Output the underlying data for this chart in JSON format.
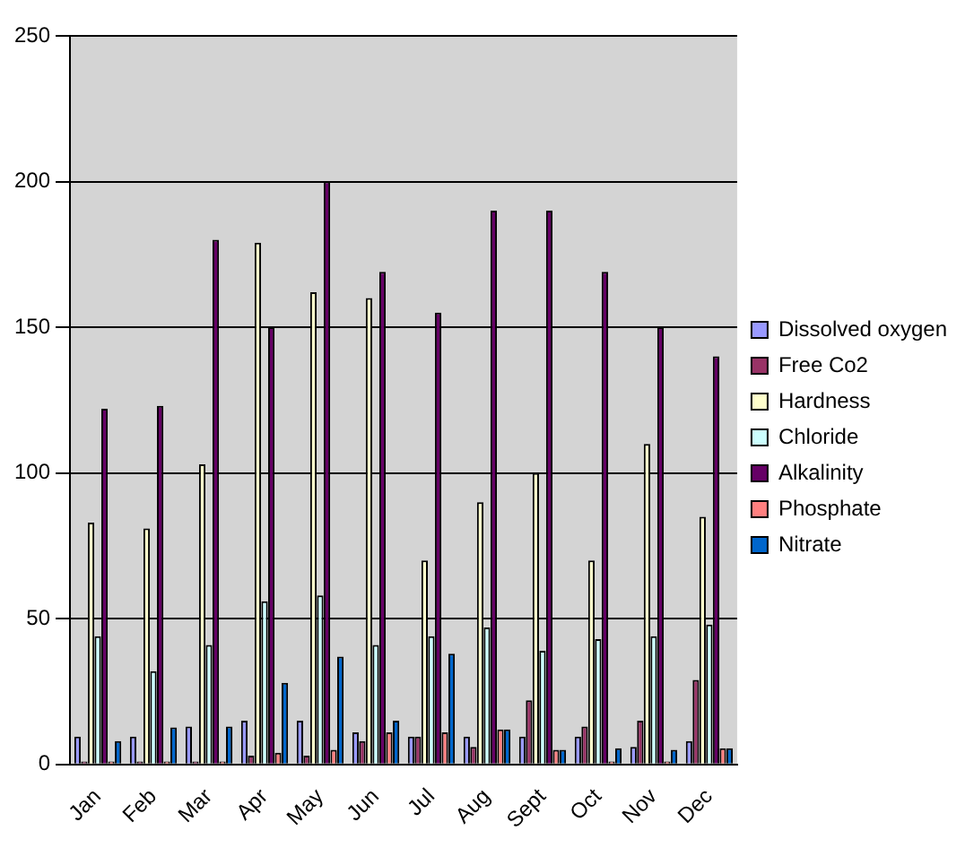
{
  "chart_data": {
    "type": "bar",
    "categories": [
      "Jan",
      "Feb",
      "Mar",
      "Apr",
      "May",
      "Jun",
      "Jul",
      "Aug",
      "Sept",
      "Oct",
      "Nov",
      "Dec"
    ],
    "series": [
      {
        "name": "Dissolved oxygen",
        "color": "#9999ff",
        "values": [
          9.5,
          9.5,
          13,
          15,
          15,
          11,
          9.5,
          9.5,
          9.5,
          9.5,
          6,
          8
        ]
      },
      {
        "name": "Free Co2",
        "color": "#993366",
        "values": [
          1,
          1,
          1,
          3,
          3,
          8,
          9.5,
          6,
          22,
          13,
          15,
          29
        ]
      },
      {
        "name": "Hardness",
        "color": "#ffffcc",
        "values": [
          83,
          81,
          103,
          179,
          162,
          160,
          70,
          90,
          100,
          70,
          110,
          85
        ]
      },
      {
        "name": "Chloride",
        "color": "#ccffff",
        "values": [
          44,
          32,
          41,
          56,
          58,
          41,
          44,
          47,
          39,
          43,
          44,
          48
        ]
      },
      {
        "name": "Alkalinity",
        "color": "#660066",
        "values": [
          122,
          123,
          180,
          150,
          200,
          169,
          155,
          190,
          190,
          169,
          150,
          140
        ]
      },
      {
        "name": "Phosphate",
        "color": "#ff8080",
        "values": [
          1,
          1,
          1,
          4,
          5,
          11,
          11,
          12,
          5,
          1,
          1,
          5.5
        ]
      },
      {
        "name": "Nitrate",
        "color": "#0066cc",
        "values": [
          8,
          12.7,
          13,
          28,
          37,
          15,
          38,
          12,
          5,
          5.5,
          5,
          5.5
        ]
      }
    ],
    "ylim": [
      0,
      250
    ],
    "yticks": [
      0,
      50,
      100,
      150,
      200,
      250
    ],
    "grid": "y",
    "legend": "right"
  }
}
